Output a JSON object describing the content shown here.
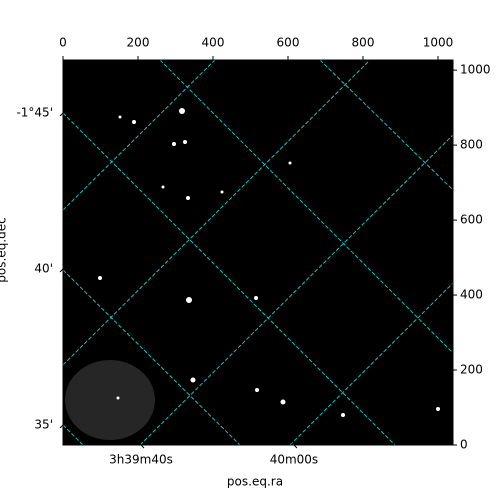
{
  "chart_data": {
    "type": "image",
    "xlabel": "pos.eq.ra",
    "ylabel": "pos.eq.dec",
    "xlim": [
      0,
      1040
    ],
    "ylim": [
      0,
      1027
    ],
    "xticks": [
      0,
      200,
      400,
      600,
      800,
      1000
    ],
    "yticks": [
      0,
      200,
      400,
      600,
      800,
      1000
    ],
    "ra_lim": [
      13169.8,
      13220.8
    ],
    "ra_ticks": [
      {
        "value": 13180,
        "label": "3h39m40s"
      },
      {
        "value": 13200,
        "label": "40m00s"
      }
    ],
    "dec_lim": [
      -106.7,
      -94.36
    ],
    "dec_ticks": [
      {
        "value": -105,
        "label": "-1°45'"
      },
      {
        "value": -100,
        "label": "40'"
      },
      {
        "value": -95,
        "label": "35'"
      }
    ],
    "grid": true,
    "grid_color": "#22e0e0",
    "cmap": "gray"
  }
}
